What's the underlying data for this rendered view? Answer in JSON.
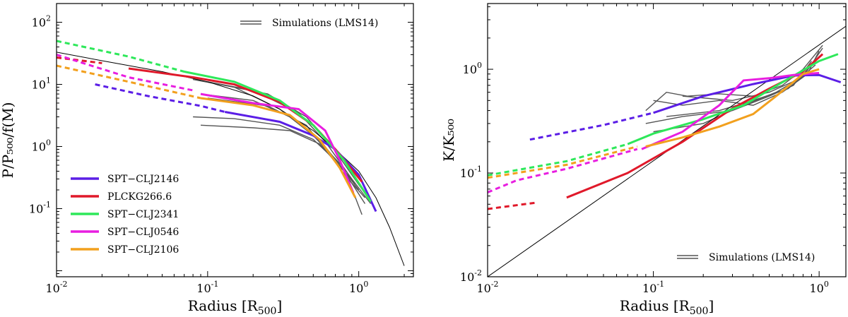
{
  "chart_data": [
    {
      "type": "line",
      "scale": "log-log",
      "title": "",
      "xlabel": "Radius",
      "xlabel_unit_base": "R",
      "xlabel_unit_sub": "500",
      "ylabel": "P/P₅₀₀/f(M)",
      "xlim": [
        0.01,
        2.3
      ],
      "ylim": [
        0.008,
        200
      ],
      "x_ticks": [
        {
          "value": 0.01,
          "base": "10",
          "exp": "-2"
        },
        {
          "value": 0.1,
          "base": "10",
          "exp": "-1"
        },
        {
          "value": 1,
          "base": "10",
          "exp": "0"
        }
      ],
      "y_ticks": [
        {
          "value": 0.1,
          "base": "10",
          "exp": "-1"
        },
        {
          "value": 1,
          "base": "10",
          "exp": "0"
        },
        {
          "value": 10,
          "base": "10",
          "exp": "1"
        },
        {
          "value": 100,
          "base": "10",
          "exp": "2"
        }
      ],
      "sim_legend": "Simulations (LMS14)",
      "legend_position": "bottom-left",
      "model": {
        "name": "model",
        "color": "#000000",
        "points": [
          [
            0.01,
            33
          ],
          [
            0.02,
            24
          ],
          [
            0.05,
            16
          ],
          [
            0.1,
            11
          ],
          [
            0.2,
            6.5
          ],
          [
            0.3,
            4
          ],
          [
            0.5,
            1.8
          ],
          [
            0.7,
            0.9
          ],
          [
            1.0,
            0.4
          ],
          [
            1.3,
            0.15
          ],
          [
            1.6,
            0.05
          ],
          [
            2.0,
            0.012
          ]
        ]
      },
      "simulations": [
        {
          "points": [
            [
              0.08,
              12
            ],
            [
              0.15,
              9
            ],
            [
              0.3,
              4
            ],
            [
              0.5,
              1.5
            ],
            [
              0.8,
              0.45
            ],
            [
              1.05,
              0.08
            ]
          ]
        },
        {
          "points": [
            [
              0.1,
              11
            ],
            [
              0.2,
              8
            ],
            [
              0.4,
              3.5
            ],
            [
              0.6,
              1.2
            ],
            [
              0.9,
              0.3
            ],
            [
              1.2,
              0.12
            ]
          ]
        },
        {
          "points": [
            [
              0.09,
              7
            ],
            [
              0.2,
              5.5
            ],
            [
              0.35,
              3
            ],
            [
              0.55,
              1.3
            ],
            [
              0.75,
              0.5
            ],
            [
              1.0,
              0.2
            ]
          ]
        },
        {
          "points": [
            [
              0.1,
              6
            ],
            [
              0.25,
              4.5
            ],
            [
              0.45,
              2.2
            ],
            [
              0.6,
              0.9
            ],
            [
              0.85,
              0.3
            ],
            [
              1.1,
              0.15
            ]
          ]
        },
        {
          "points": [
            [
              0.08,
              3
            ],
            [
              0.15,
              2.8
            ],
            [
              0.3,
              2.2
            ],
            [
              0.5,
              1.3
            ],
            [
              0.7,
              0.6
            ],
            [
              0.95,
              0.25
            ]
          ]
        },
        {
          "points": [
            [
              0.09,
              2.2
            ],
            [
              0.2,
              2.0
            ],
            [
              0.35,
              1.8
            ],
            [
              0.55,
              1.1
            ],
            [
              0.8,
              0.4
            ],
            [
              1.1,
              0.12
            ]
          ]
        },
        {
          "points": [
            [
              0.12,
              10
            ],
            [
              0.25,
              7
            ],
            [
              0.45,
              3
            ],
            [
              0.65,
              1.1
            ],
            [
              0.9,
              0.35
            ],
            [
              1.2,
              0.13
            ]
          ]
        }
      ],
      "series": [
        {
          "name": "SPT−CLJ2146",
          "color": "#5b1ee6",
          "dashed": [
            [
              0.018,
              10
            ],
            [
              0.04,
              6.5
            ],
            [
              0.09,
              4.5
            ],
            [
              0.13,
              3.6
            ]
          ],
          "solid": [
            [
              0.13,
              3.6
            ],
            [
              0.3,
              2.5
            ],
            [
              0.5,
              1.5
            ],
            [
              0.7,
              0.9
            ],
            [
              1.0,
              0.35
            ],
            [
              1.3,
              0.09
            ]
          ]
        },
        {
          "name": "PLCKG266.6",
          "color": "#e0192a",
          "dashed": [
            [
              0.01,
              27
            ],
            [
              0.02,
              22
            ]
          ],
          "solid": [
            [
              0.03,
              18
            ],
            [
              0.08,
              13
            ],
            [
              0.15,
              10
            ],
            [
              0.3,
              5.2
            ],
            [
              0.5,
              2.2
            ],
            [
              0.7,
              0.9
            ],
            [
              1.05,
              0.27
            ]
          ]
        },
        {
          "name": "SPT−CLJ2341",
          "color": "#2ee85a",
          "dashed": [
            [
              0.01,
              50
            ],
            [
              0.03,
              28
            ],
            [
              0.07,
              16
            ]
          ],
          "solid": [
            [
              0.07,
              16
            ],
            [
              0.15,
              11
            ],
            [
              0.3,
              5.5
            ],
            [
              0.5,
              2.2
            ],
            [
              0.8,
              0.6
            ],
            [
              1.2,
              0.13
            ]
          ]
        },
        {
          "name": "SPT−CLJ0546",
          "color": "#e81ee0",
          "dashed": [
            [
              0.01,
              30
            ],
            [
              0.015,
              22
            ],
            [
              0.03,
              13
            ],
            [
              0.08,
              8
            ]
          ],
          "solid": [
            [
              0.09,
              7
            ],
            [
              0.2,
              5
            ],
            [
              0.4,
              4
            ],
            [
              0.6,
              1.8
            ],
            [
              0.75,
              0.6
            ],
            [
              0.92,
              0.18
            ]
          ]
        },
        {
          "name": "SPT−CLJ2106",
          "color": "#f2a01e",
          "dashed": [
            [
              0.01,
              20
            ],
            [
              0.03,
              11
            ],
            [
              0.09,
              6
            ]
          ],
          "solid": [
            [
              0.09,
              6
            ],
            [
              0.2,
              4.6
            ],
            [
              0.35,
              3.2
            ],
            [
              0.55,
              1.3
            ],
            [
              0.75,
              0.45
            ],
            [
              0.95,
              0.15
            ]
          ]
        }
      ]
    },
    {
      "type": "line",
      "scale": "log-log",
      "title": "",
      "xlabel": "Radius",
      "xlabel_unit_base": "R",
      "xlabel_unit_sub": "500",
      "ylabel": "K/K₅₀₀",
      "xlim": [
        0.01,
        1.45
      ],
      "ylim": [
        0.01,
        4.3
      ],
      "x_ticks": [
        {
          "value": 0.01,
          "base": "10",
          "exp": "-2"
        },
        {
          "value": 0.1,
          "base": "10",
          "exp": "-1"
        },
        {
          "value": 1,
          "base": "10",
          "exp": "0"
        }
      ],
      "y_ticks": [
        {
          "value": 0.01,
          "base": "10",
          "exp": "-2"
        },
        {
          "value": 0.1,
          "base": "10",
          "exp": "-1"
        },
        {
          "value": 1,
          "base": "10",
          "exp": "0"
        }
      ],
      "sim_legend": "Simulations (LMS14)",
      "legend_position": "bottom-right",
      "model": {
        "name": "model",
        "color": "#000000",
        "points": [
          [
            0.01,
            0.01
          ],
          [
            1.45,
            2.6
          ]
        ]
      },
      "simulations": [
        {
          "points": [
            [
              0.09,
              0.4
            ],
            [
              0.12,
              0.6
            ],
            [
              0.16,
              0.55
            ],
            [
              0.25,
              0.58
            ],
            [
              0.4,
              0.55
            ],
            [
              0.6,
              0.7
            ],
            [
              0.8,
              1.0
            ],
            [
              1.05,
              1.7
            ]
          ]
        },
        {
          "points": [
            [
              0.1,
              0.5
            ],
            [
              0.15,
              0.45
            ],
            [
              0.25,
              0.5
            ],
            [
              0.4,
              0.45
            ],
            [
              0.6,
              0.6
            ],
            [
              0.85,
              0.9
            ],
            [
              1.0,
              1.5
            ]
          ]
        },
        {
          "points": [
            [
              0.09,
              0.3
            ],
            [
              0.15,
              0.35
            ],
            [
              0.3,
              0.4
            ],
            [
              0.5,
              0.55
            ],
            [
              0.7,
              0.7
            ],
            [
              0.9,
              1.2
            ]
          ]
        },
        {
          "points": [
            [
              0.1,
              0.25
            ],
            [
              0.2,
              0.3
            ],
            [
              0.35,
              0.45
            ],
            [
              0.55,
              0.6
            ],
            [
              0.8,
              0.85
            ],
            [
              1.05,
              1.6
            ]
          ]
        },
        {
          "points": [
            [
              0.12,
              0.35
            ],
            [
              0.25,
              0.4
            ],
            [
              0.4,
              0.5
            ],
            [
              0.65,
              0.65
            ],
            [
              0.95,
              1.1
            ]
          ]
        },
        {
          "points": [
            [
              0.15,
              0.55
            ],
            [
              0.3,
              0.5
            ],
            [
              0.5,
              0.6
            ],
            [
              0.75,
              0.8
            ],
            [
              1.0,
              1.3
            ]
          ]
        }
      ],
      "series": [
        {
          "name": "SPT−CLJ2146",
          "color": "#5b1ee6",
          "dashed": [
            [
              0.018,
              0.21
            ],
            [
              0.05,
              0.29
            ],
            [
              0.1,
              0.38
            ]
          ],
          "solid": [
            [
              0.1,
              0.38
            ],
            [
              0.2,
              0.55
            ],
            [
              0.4,
              0.72
            ],
            [
              0.7,
              0.87
            ],
            [
              1.0,
              0.88
            ],
            [
              1.35,
              0.75
            ]
          ]
        },
        {
          "name": "PLCKG266.6",
          "color": "#e0192a",
          "dashed": [
            [
              0.01,
              0.045
            ],
            [
              0.02,
              0.052
            ]
          ],
          "solid": [
            [
              0.03,
              0.058
            ],
            [
              0.07,
              0.1
            ],
            [
              0.15,
              0.2
            ],
            [
              0.3,
              0.42
            ],
            [
              0.5,
              0.65
            ],
            [
              0.8,
              0.95
            ],
            [
              1.05,
              1.4
            ]
          ]
        },
        {
          "name": "SPT−CLJ2341",
          "color": "#2ee85a",
          "dashed": [
            [
              0.01,
              0.095
            ],
            [
              0.03,
              0.13
            ],
            [
              0.07,
              0.19
            ]
          ],
          "solid": [
            [
              0.07,
              0.19
            ],
            [
              0.1,
              0.24
            ],
            [
              0.2,
              0.33
            ],
            [
              0.35,
              0.45
            ],
            [
              0.6,
              0.75
            ],
            [
              1.0,
              1.2
            ],
            [
              1.3,
              1.4
            ]
          ]
        },
        {
          "name": "SPT−CLJ0546",
          "color": "#e81ee0",
          "dashed": [
            [
              0.01,
              0.065
            ],
            [
              0.015,
              0.085
            ],
            [
              0.03,
              0.11
            ],
            [
              0.08,
              0.17
            ]
          ],
          "solid": [
            [
              0.085,
              0.17
            ],
            [
              0.15,
              0.25
            ],
            [
              0.25,
              0.45
            ],
            [
              0.35,
              0.78
            ],
            [
              0.5,
              0.82
            ],
            [
              0.7,
              0.88
            ],
            [
              1.0,
              0.92
            ]
          ]
        },
        {
          "name": "SPT−CLJ2106",
          "color": "#f2a01e",
          "dashed": [
            [
              0.01,
              0.09
            ],
            [
              0.03,
              0.12
            ],
            [
              0.08,
              0.18
            ]
          ],
          "solid": [
            [
              0.09,
              0.18
            ],
            [
              0.15,
              0.22
            ],
            [
              0.25,
              0.28
            ],
            [
              0.4,
              0.37
            ],
            [
              0.55,
              0.55
            ],
            [
              0.8,
              0.9
            ],
            [
              1.0,
              1.0
            ]
          ]
        }
      ]
    }
  ]
}
